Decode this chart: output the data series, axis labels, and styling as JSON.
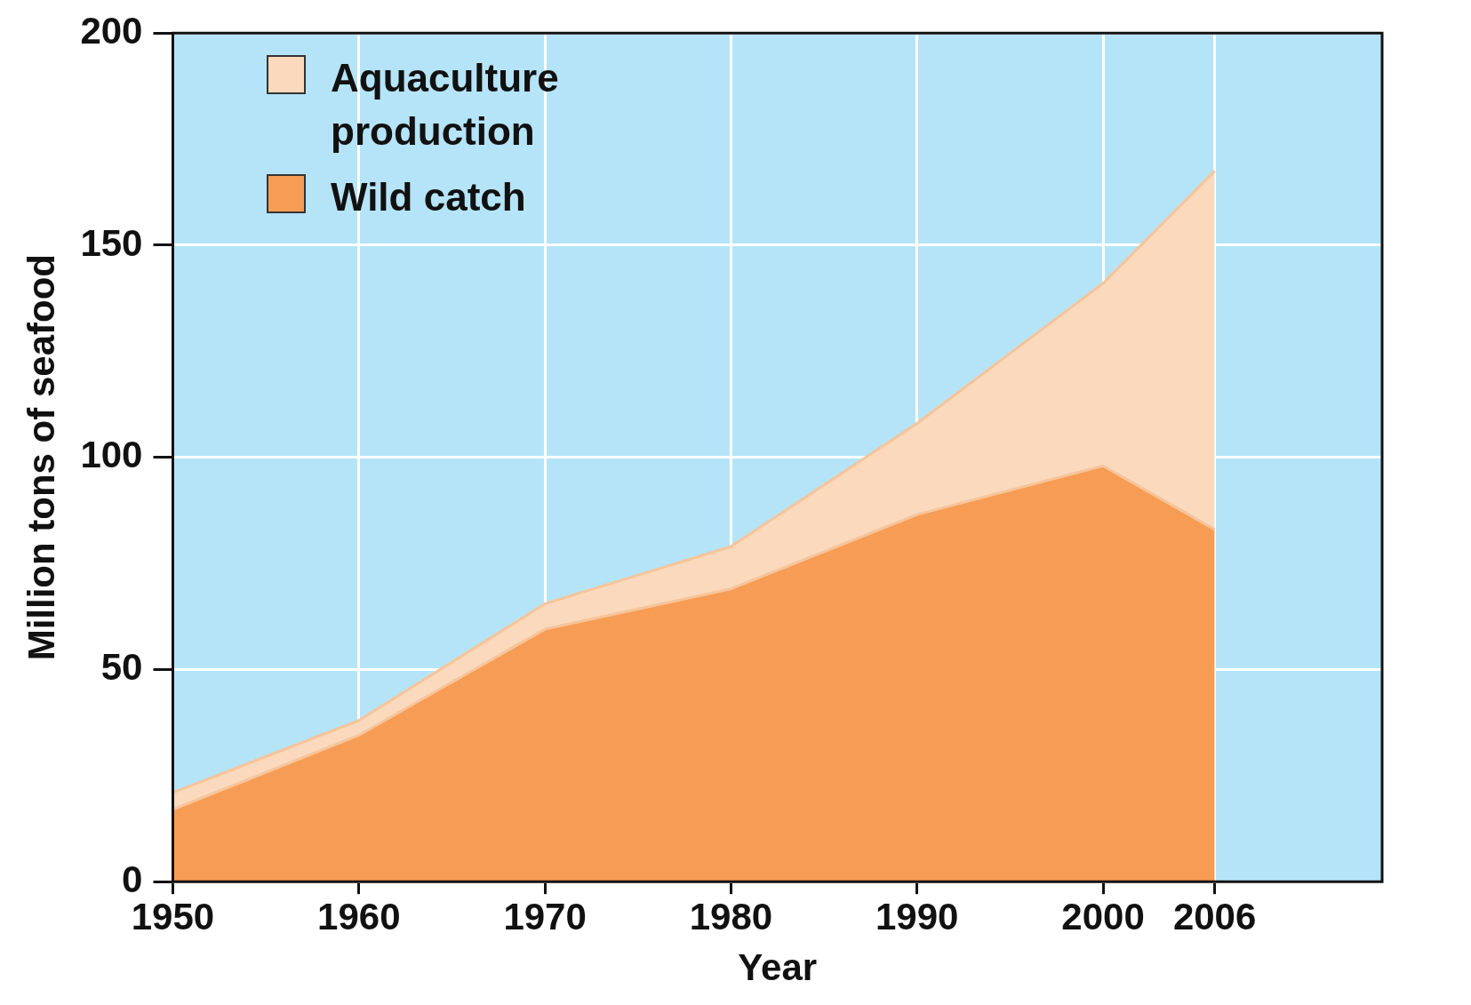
{
  "chart_data": {
    "type": "area",
    "stacked": true,
    "xlabel": "Year",
    "ylabel": "Million tons of seafood",
    "x": [
      1950,
      1960,
      1970,
      1980,
      1990,
      2000,
      2006
    ],
    "series": [
      {
        "name": "Wild catch",
        "color": "#f79c55",
        "values": [
          17,
          34.5,
          59.5,
          69,
          86.5,
          98,
          83
        ]
      },
      {
        "name": "Aquaculture production",
        "color": "#fad9bc",
        "values": [
          4,
          3.5,
          6,
          10,
          21.5,
          43,
          84.5
        ]
      }
    ],
    "xlim": [
      1950,
      2015
    ],
    "xticks": [
      1950,
      1960,
      1970,
      1980,
      1990,
      2000,
      2006
    ],
    "ylim": [
      0,
      200
    ],
    "yticks": [
      0,
      50,
      100,
      150,
      200
    ],
    "grid": true,
    "legend": "top left"
  }
}
